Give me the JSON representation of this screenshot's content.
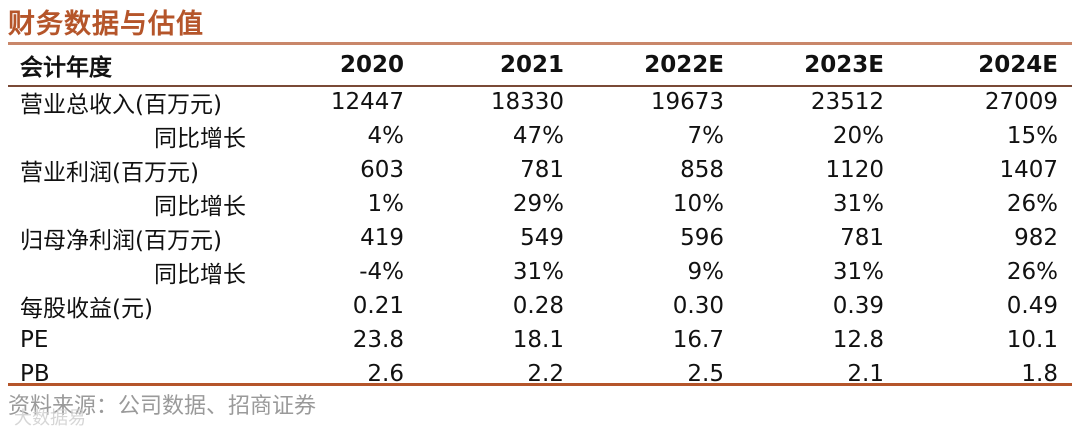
{
  "title": "财务数据与估值",
  "table": {
    "header": [
      "会计年度",
      "2020",
      "2021",
      "2022E",
      "2023E",
      "2024E"
    ],
    "rows": [
      {
        "label": "营业总收入(百万元)",
        "indent": false,
        "values": [
          "12447",
          "18330",
          "19673",
          "23512",
          "27009"
        ]
      },
      {
        "label": "同比增长",
        "indent": true,
        "values": [
          "4%",
          "47%",
          "7%",
          "20%",
          "15%"
        ]
      },
      {
        "label": "营业利润(百万元)",
        "indent": false,
        "values": [
          "603",
          "781",
          "858",
          "1120",
          "1407"
        ]
      },
      {
        "label": "同比增长",
        "indent": true,
        "values": [
          "1%",
          "29%",
          "10%",
          "31%",
          "26%"
        ]
      },
      {
        "label": "归母净利润(百万元)",
        "indent": false,
        "values": [
          "419",
          "549",
          "596",
          "781",
          "982"
        ]
      },
      {
        "label": "同比增长",
        "indent": true,
        "values": [
          "-4%",
          "31%",
          "9%",
          "31%",
          "26%"
        ]
      },
      {
        "label": "每股收益(元)",
        "indent": false,
        "values": [
          "0.21",
          "0.28",
          "0.30",
          "0.39",
          "0.49"
        ]
      },
      {
        "label": "PE",
        "indent": false,
        "values": [
          "23.8",
          "18.1",
          "16.7",
          "12.8",
          "10.1"
        ]
      },
      {
        "label": "PB",
        "indent": false,
        "values": [
          "2.6",
          "2.2",
          "2.5",
          "2.1",
          "1.8"
        ]
      }
    ]
  },
  "footer": "资料来源：公司数据、招商证券",
  "watermark": "大数据易",
  "colors": {
    "accent": "#b5552a",
    "rule": "#c9876a"
  }
}
